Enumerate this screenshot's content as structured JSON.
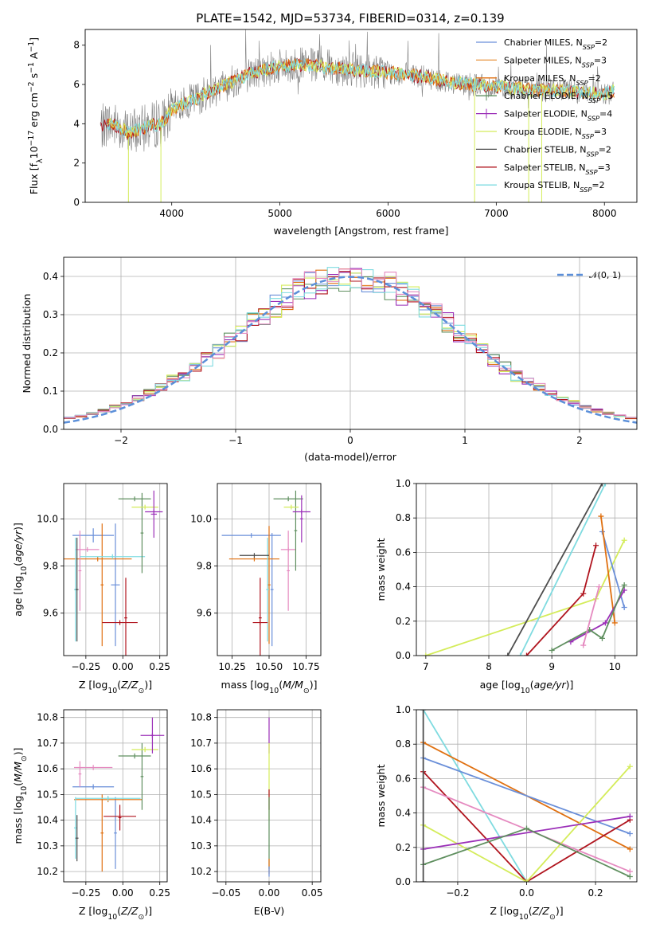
{
  "figure": {
    "title": "PLATE=1542, MJD=53734, FIBERID=0314, z=0.139"
  },
  "colors": {
    "Chabrier MILES": "#6a8fd9",
    "Salpeter MILES": "#e8943e",
    "Kroupa MILES": "#e07010",
    "Chabrier ELODIE": "#5f8f5f",
    "Salpeter ELODIE": "#9b2fb8",
    "Kroupa ELODIE": "#d4ec5a",
    "Chabrier STELIB": "#4d4d4d",
    "Salpeter STELIB": "#b0141e",
    "Kroupa STELIB": "#7fdbe0",
    "Pink": "#e58ac0",
    "Data": "#808080",
    "Normal": "#5b8fd9"
  },
  "chart_data": [
    {
      "id": "spectrum",
      "type": "line",
      "xlabel": "wavelength [Angstrom, rest frame]",
      "xlim": [
        3200,
        8300
      ],
      "ylim": [
        0,
        8.8
      ],
      "xticks": [
        "4000",
        "5000",
        "6000",
        "7000",
        "8000"
      ],
      "yticks": [
        "0",
        "2",
        "4",
        "6",
        "8"
      ],
      "legend_position": "right",
      "legend": [
        {
          "name": "Chabrier MILES",
          "nssp": "2"
        },
        {
          "name": "Salpeter MILES",
          "nssp": "3"
        },
        {
          "name": "Kroupa MILES",
          "nssp": "2"
        },
        {
          "name": "Chabrier ELODIE",
          "nssp": "5"
        },
        {
          "name": "Salpeter ELODIE",
          "nssp": "4"
        },
        {
          "name": "Kroupa ELODIE",
          "nssp": "3"
        },
        {
          "name": "Chabrier STELIB",
          "nssp": "2"
        },
        {
          "name": "Salpeter STELIB",
          "nssp": "3"
        },
        {
          "name": "Kroupa STELIB",
          "nssp": "2"
        }
      ],
      "continuum": {
        "x": [
          3300,
          3400,
          3500,
          3600,
          3700,
          3800,
          3900,
          4000,
          4100,
          4200,
          4300,
          4500,
          4700,
          4900,
          5000,
          5200,
          5400,
          5600,
          5800,
          6000,
          6200,
          6400,
          6600,
          6800,
          7000,
          7200,
          7400,
          7600,
          7800,
          8000,
          8100
        ],
        "y": [
          3.6,
          4.0,
          3.9,
          3.5,
          3.7,
          3.9,
          4.0,
          4.7,
          5.0,
          5.2,
          5.5,
          6.0,
          6.5,
          6.8,
          6.9,
          7.0,
          6.9,
          6.8,
          6.7,
          6.6,
          6.5,
          6.3,
          6.1,
          6.0,
          5.9,
          5.8,
          5.7,
          5.7,
          5.6,
          5.5,
          5.7
        ]
      }
    },
    {
      "id": "residuals",
      "type": "bar",
      "xlabel": "(data-model)/error",
      "ylabel": "Normed distribution",
      "xlim": [
        -2.5,
        2.5
      ],
      "ylim": [
        0,
        0.45
      ],
      "xticks": [
        "−2",
        "−1",
        "0",
        "1",
        "2"
      ],
      "yticks": [
        "0.0",
        "0.1",
        "0.2",
        "0.3",
        "0.4"
      ],
      "legend": "𝒩(0, 1)",
      "bin_edges_start": -2.5,
      "bin_width": 0.1
    },
    {
      "id": "age_vs_Z",
      "type": "scatter",
      "xlabel": "Z [log₁₀(Z/Z☉)]",
      "xlim": [
        -0.4,
        0.3
      ],
      "ylim": [
        9.42,
        10.15
      ],
      "xticks": [
        "−0.25",
        "0.00",
        "0.25"
      ],
      "yticks": [
        "9.6",
        "9.8",
        "10.0"
      ],
      "points": [
        {
          "c": "Chabrier MILES",
          "x": -0.2,
          "xerr": 0.14,
          "y": 9.93,
          "yerr": 0.03
        },
        {
          "c": "Chabrier MILES",
          "x": -0.05,
          "xerr": 0.03,
          "y": 9.72,
          "yerr": 0.26
        },
        {
          "c": "Kroupa MILES",
          "x": -0.17,
          "xerr": 0.23,
          "y": 9.83,
          "yerr": 0.01
        },
        {
          "c": "Kroupa MILES",
          "x": -0.14,
          "xerr": 0.01,
          "y": 9.72,
          "yerr": 0.26
        },
        {
          "c": "Pink",
          "x": -0.24,
          "xerr": 0.08,
          "y": 9.87,
          "yerr": 0.01
        },
        {
          "c": "Pink",
          "x": -0.29,
          "xerr": 0.01,
          "y": 9.78,
          "yerr": 0.17
        },
        {
          "c": "Kroupa STELIB",
          "x": -0.07,
          "xerr": 0.22,
          "y": 9.84,
          "yerr": 0.01
        },
        {
          "c": "Kroupa STELIB",
          "x": -0.32,
          "xerr": 0.01,
          "y": 9.7,
          "yerr": 0.22
        },
        {
          "c": "Chabrier STELIB",
          "x": -0.31,
          "xerr": 0.01,
          "y": 9.7,
          "yerr": 0.22
        },
        {
          "c": "Salpeter STELIB",
          "x": -0.02,
          "xerr": 0.12,
          "y": 9.56,
          "yerr": 0.01
        },
        {
          "c": "Salpeter STELIB",
          "x": 0.02,
          "xerr": 0.01,
          "y": 9.58,
          "yerr": 0.17
        },
        {
          "c": "Chabrier ELODIE",
          "x": 0.08,
          "xerr": 0.11,
          "y": 10.085,
          "yerr": 0.01
        },
        {
          "c": "Chabrier ELODIE",
          "x": 0.13,
          "xerr": 0.01,
          "y": 9.94,
          "yerr": 0.17
        },
        {
          "c": "Kroupa ELODIE",
          "x": 0.15,
          "xerr": 0.09,
          "y": 10.05,
          "yerr": 0.01
        },
        {
          "c": "Salpeter ELODIE",
          "x": 0.21,
          "xerr": 0.02,
          "y": 10.02,
          "yerr": 0.1
        },
        {
          "c": "Salpeter ELODIE",
          "x": 0.21,
          "xerr": 0.06,
          "y": 10.03,
          "yerr": 0.01
        }
      ]
    },
    {
      "id": "age_vs_mass",
      "type": "scatter",
      "xlabel": "mass [log₁₀(M/M☉)]",
      "xlim": [
        10.15,
        10.85
      ],
      "ylim": [
        9.42,
        10.15
      ],
      "xticks": [
        "10.25",
        "10.50",
        "10.75"
      ],
      "yticks": [
        "9.6",
        "9.8",
        "10.0"
      ],
      "points": [
        {
          "c": "Chabrier MILES",
          "x": 10.38,
          "xerr": 0.2,
          "y": 9.93,
          "yerr": 0.01
        },
        {
          "c": "Chabrier MILES",
          "x": 10.52,
          "xerr": 0.01,
          "y": 9.7,
          "yerr": 0.24
        },
        {
          "c": "Kroupa MILES",
          "x": 10.4,
          "xerr": 0.17,
          "y": 9.83,
          "yerr": 0.01
        },
        {
          "c": "Kroupa MILES",
          "x": 10.5,
          "xerr": 0.01,
          "y": 9.72,
          "yerr": 0.25
        },
        {
          "c": "Pink",
          "x": 10.63,
          "xerr": 0.05,
          "y": 9.87,
          "yerr": 0.01
        },
        {
          "c": "Pink",
          "x": 10.63,
          "xerr": 0.01,
          "y": 9.78,
          "yerr": 0.17
        },
        {
          "c": "Kroupa STELIB",
          "x": 10.49,
          "xerr": 0.01,
          "y": 9.7,
          "yerr": 0.22
        },
        {
          "c": "Chabrier STELIB",
          "x": 10.4,
          "xerr": 0.1,
          "y": 9.845,
          "yerr": 0.01
        },
        {
          "c": "Salpeter STELIB",
          "x": 10.44,
          "xerr": 0.05,
          "y": 9.56,
          "yerr": 0.01
        },
        {
          "c": "Salpeter STELIB",
          "x": 10.44,
          "xerr": 0.01,
          "y": 9.58,
          "yerr": 0.17
        },
        {
          "c": "Chabrier ELODIE",
          "x": 10.63,
          "xerr": 0.1,
          "y": 10.085,
          "yerr": 0.01
        },
        {
          "c": "Chabrier ELODIE",
          "x": 10.68,
          "xerr": 0.01,
          "y": 9.95,
          "yerr": 0.17
        },
        {
          "c": "Kroupa ELODIE",
          "x": 10.65,
          "xerr": 0.05,
          "y": 10.05,
          "yerr": 0.01
        },
        {
          "c": "Salpeter ELODIE",
          "x": 10.72,
          "xerr": 0.06,
          "y": 10.03,
          "yerr": 0.01
        },
        {
          "c": "Salpeter ELODIE",
          "x": 10.72,
          "xerr": 0.01,
          "y": 10.0,
          "yerr": 0.1
        }
      ]
    },
    {
      "id": "weight_vs_age",
      "type": "line",
      "xlabel": "age  [log₁₀(age/yr)]",
      "ylabel": "mass weight",
      "xlim": [
        6.85,
        10.35
      ],
      "ylim": [
        0,
        1
      ],
      "xticks": [
        "7",
        "8",
        "9",
        "10"
      ],
      "yticks": [
        "0.0",
        "0.2",
        "0.4",
        "0.6",
        "0.8",
        "1.0"
      ],
      "series": [
        {
          "c": "Kroupa ELODIE",
          "x": [
            7.0,
            9.7,
            10.15
          ],
          "y": [
            0.0,
            0.33,
            0.67
          ]
        },
        {
          "c": "Chabrier STELIB",
          "x": [
            8.3,
            9.8
          ],
          "y": [
            0.0,
            1.0
          ]
        },
        {
          "c": "Kroupa STELIB",
          "x": [
            8.5,
            9.85
          ],
          "y": [
            0.0,
            1.0
          ]
        },
        {
          "c": "Chabrier MILES",
          "x": [
            9.8,
            10.15
          ],
          "y": [
            0.72,
            0.28
          ]
        },
        {
          "c": "Kroupa MILES",
          "x": [
            9.78,
            10.0
          ],
          "y": [
            0.81,
            0.19
          ]
        },
        {
          "c": "Salpeter STELIB",
          "x": [
            8.6,
            9.5,
            9.7
          ],
          "y": [
            0.0,
            0.36,
            0.64
          ]
        },
        {
          "c": "Salpeter ELODIE",
          "x": [
            9.3,
            9.85,
            10.15
          ],
          "y": [
            0.08,
            0.19,
            0.38
          ]
        },
        {
          "c": "Chabrier ELODIE",
          "x": [
            9.0,
            9.6,
            9.8,
            10.15
          ],
          "y": [
            0.03,
            0.15,
            0.1,
            0.41
          ]
        },
        {
          "c": "Pink",
          "x": [
            9.5,
            9.75
          ],
          "y": [
            0.06,
            0.4
          ]
        }
      ]
    },
    {
      "id": "mass_vs_Z",
      "type": "scatter",
      "xlabel": "Z [log₁₀(Z/Z☉)]",
      "xlim": [
        -0.4,
        0.3
      ],
      "ylim": [
        10.16,
        10.83
      ],
      "xticks": [
        "−0.25",
        "0.00",
        "0.25"
      ],
      "yticks": [
        "10.2",
        "10.3",
        "10.4",
        "10.5",
        "10.6",
        "10.7",
        "10.8"
      ],
      "points": [
        {
          "c": "Chabrier MILES",
          "x": -0.2,
          "xerr": 0.14,
          "y": 10.53,
          "yerr": 0.01
        },
        {
          "c": "Chabrier MILES",
          "x": -0.05,
          "xerr": 0.01,
          "y": 10.35,
          "yerr": 0.14
        },
        {
          "c": "Kroupa MILES",
          "x": -0.14,
          "xerr": 0.01,
          "y": 10.35,
          "yerr": 0.15
        },
        {
          "c": "Kroupa MILES",
          "x": -0.1,
          "xerr": 0.23,
          "y": 10.48,
          "yerr": 0.01
        },
        {
          "c": "Pink",
          "x": -0.2,
          "xerr": 0.13,
          "y": 10.605,
          "yerr": 0.01
        },
        {
          "c": "Pink",
          "x": -0.29,
          "xerr": 0.01,
          "y": 10.58,
          "yerr": 0.05
        },
        {
          "c": "Kroupa STELIB",
          "x": -0.1,
          "xerr": 0.22,
          "y": 10.485,
          "yerr": 0.01
        },
        {
          "c": "Kroupa STELIB",
          "x": -0.32,
          "xerr": 0.01,
          "y": 10.37,
          "yerr": 0.12
        },
        {
          "c": "Chabrier STELIB",
          "x": -0.31,
          "xerr": 0.01,
          "y": 10.33,
          "yerr": 0.09
        },
        {
          "c": "Salpeter STELIB",
          "x": -0.02,
          "xerr": 0.11,
          "y": 10.415,
          "yerr": 0.01
        },
        {
          "c": "Salpeter STELIB",
          "x": -0.02,
          "xerr": 0.01,
          "y": 10.41,
          "yerr": 0.05
        },
        {
          "c": "Chabrier ELODIE",
          "x": 0.08,
          "xerr": 0.11,
          "y": 10.65,
          "yerr": 0.01
        },
        {
          "c": "Chabrier ELODIE",
          "x": 0.13,
          "xerr": 0.01,
          "y": 10.57,
          "yerr": 0.13
        },
        {
          "c": "Kroupa ELODIE",
          "x": 0.15,
          "xerr": 0.09,
          "y": 10.675,
          "yerr": 0.01
        },
        {
          "c": "Salpeter ELODIE",
          "x": 0.2,
          "xerr": 0.08,
          "y": 10.73,
          "yerr": 0.01
        },
        {
          "c": "Salpeter ELODIE",
          "x": 0.2,
          "xerr": 0.01,
          "y": 10.73,
          "yerr": 0.07
        }
      ]
    },
    {
      "id": "mass_vs_ebv",
      "type": "scatter",
      "xlabel": "E(B-V)",
      "xlim": [
        -0.06,
        0.06
      ],
      "ylim": [
        10.16,
        10.83
      ],
      "xticks": [
        "−0.05",
        "0.00",
        "0.05"
      ],
      "yticks": [
        "10.2",
        "10.3",
        "10.4",
        "10.5",
        "10.6",
        "10.7",
        "10.8"
      ],
      "points": [
        {
          "c": "Salpeter ELODIE",
          "x": 0.0,
          "xerr": 0,
          "y": 10.73,
          "yerr": 0.07
        },
        {
          "c": "Kroupa ELODIE",
          "x": 0.0,
          "xerr": 0,
          "y": 10.55,
          "yerr": 0.15
        },
        {
          "c": "Salpeter STELIB",
          "x": 0.0,
          "xerr": 0,
          "y": 10.48,
          "yerr": 0.04
        },
        {
          "c": "Chabrier ELODIE",
          "x": 0.0,
          "xerr": 0,
          "y": 10.35,
          "yerr": 0.14
        },
        {
          "c": "Kroupa MILES",
          "x": 0.0,
          "xerr": 0,
          "y": 10.22,
          "yerr": 0.03
        },
        {
          "c": "Chabrier MILES",
          "x": 0.0,
          "xerr": 0,
          "y": 10.2,
          "yerr": 0.02
        }
      ]
    },
    {
      "id": "weight_vs_Z",
      "type": "line",
      "xlabel": "Z [log₁₀(Z/Z☉)]",
      "ylabel": "mass weight",
      "xlim": [
        -0.32,
        0.32
      ],
      "ylim": [
        0,
        1
      ],
      "xticks": [
        "−0.2",
        "0.0",
        "0.2"
      ],
      "yticks": [
        "0.0",
        "0.2",
        "0.4",
        "0.6",
        "0.8",
        "1.0"
      ],
      "series": [
        {
          "c": "Kroupa STELIB",
          "x": [
            -0.3,
            0.0
          ],
          "y": [
            1.0,
            0.0
          ]
        },
        {
          "c": "Kroupa MILES",
          "x": [
            -0.3,
            0.3
          ],
          "y": [
            0.81,
            0.19
          ]
        },
        {
          "c": "Chabrier MILES",
          "x": [
            -0.3,
            0.3
          ],
          "y": [
            0.72,
            0.28
          ]
        },
        {
          "c": "Salpeter STELIB",
          "x": [
            -0.3,
            0.0,
            0.3
          ],
          "y": [
            0.64,
            0.0,
            0.36
          ]
        },
        {
          "c": "Pink",
          "x": [
            -0.3,
            0.3
          ],
          "y": [
            0.55,
            0.06
          ]
        },
        {
          "c": "Kroupa ELODIE",
          "x": [
            -0.3,
            0.0,
            0.3
          ],
          "y": [
            0.33,
            0.0,
            0.67
          ]
        },
        {
          "c": "Salpeter ELODIE",
          "x": [
            -0.3,
            0.3
          ],
          "y": [
            0.19,
            0.38
          ]
        },
        {
          "c": "Chabrier ELODIE",
          "x": [
            -0.3,
            0.0,
            0.3
          ],
          "y": [
            0.1,
            0.31,
            0.03
          ]
        },
        {
          "c": "Chabrier STELIB",
          "x": [
            -0.3,
            -0.3
          ],
          "y": [
            0.0,
            1.0
          ]
        }
      ]
    }
  ]
}
